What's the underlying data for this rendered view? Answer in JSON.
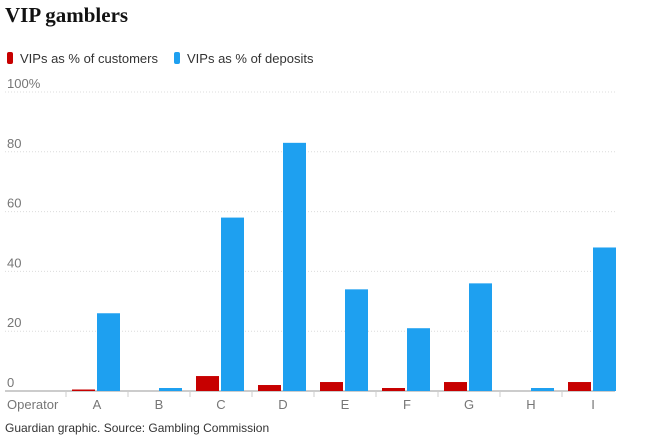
{
  "chart_data": {
    "type": "bar",
    "title": "VIP gamblers",
    "x_label": "Operator",
    "categories": [
      "A",
      "B",
      "C",
      "D",
      "E",
      "F",
      "G",
      "H",
      "I"
    ],
    "series": [
      {
        "name": "VIPs as % of customers",
        "color": "#c70000",
        "values": [
          0.5,
          0,
          5,
          2,
          3,
          1,
          3,
          0,
          3
        ]
      },
      {
        "name": "VIPs as % of deposits",
        "color": "#1ea0f0",
        "values": [
          26,
          1,
          58,
          83,
          34,
          21,
          36,
          1,
          48
        ]
      }
    ],
    "ylim": [
      0,
      100
    ],
    "yticks": [
      0,
      20,
      40,
      60,
      80,
      {
        "value": 100,
        "label": "100%"
      }
    ],
    "grid": true,
    "source": "Guardian graphic. Source: Gambling Commission"
  }
}
